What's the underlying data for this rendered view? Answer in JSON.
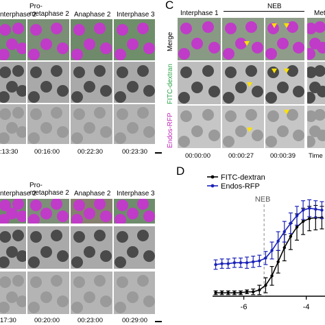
{
  "panel_C": {
    "letter": "C",
    "header_left": "Interphase 1",
    "header_neb": "NEB",
    "header_right": "Met",
    "row_labels": [
      "Merge",
      "FITC-dextran",
      "Endos-RFP"
    ],
    "timestamps": [
      "00:00:00",
      "00:00:27",
      "00:00:39"
    ],
    "time_cut": "Time"
  },
  "panel_B_top": {
    "headers": [
      "nterphase 2",
      "Pro-\nmetaphase 2",
      "Anaphase 2",
      "Interphase 3"
    ],
    "timestamps": [
      ":13:30",
      "00:16:00",
      "00:22:30",
      "00:23:30"
    ]
  },
  "panel_B_bottom": {
    "headers": [
      "nterphase 2",
      "Pro-\nmetaphase 2",
      "Anaphase 2",
      "Interphase 3"
    ],
    "timestamps": [
      "17:30",
      "00:20:00",
      "00:23:00",
      "00:29:00"
    ]
  },
  "panel_D": {
    "letter": "D",
    "neb_label": "NEB"
  },
  "chart_data": {
    "type": "line",
    "legend": [
      "FITC-dextran",
      "Endos-RFP"
    ],
    "legend_placement": "top-left",
    "x_ticks": [
      "-6",
      "-4"
    ],
    "xlim": [
      -7,
      -3.4
    ],
    "series": [
      {
        "name": "FITC-dextran",
        "color": "#000000",
        "x": [
          -6.9,
          -6.7,
          -6.5,
          -6.3,
          -6.1,
          -5.9,
          -5.7,
          -5.5,
          -5.3,
          -5.1,
          -4.9,
          -4.7,
          -4.5,
          -4.3,
          -4.1,
          -3.9,
          -3.7,
          -3.5
        ],
        "y": [
          0.0,
          0.0,
          0.0,
          0.0,
          0.0,
          0.01,
          0.01,
          0.03,
          0.08,
          0.18,
          0.33,
          0.48,
          0.6,
          0.7,
          0.76,
          0.79,
          0.8,
          0.8
        ],
        "err": [
          0.02,
          0.02,
          0.02,
          0.02,
          0.02,
          0.02,
          0.03,
          0.05,
          0.08,
          0.1,
          0.12,
          0.14,
          0.14,
          0.14,
          0.14,
          0.13,
          0.13,
          0.12
        ]
      },
      {
        "name": "Endos-RFP",
        "color": "#1a22b8",
        "x": [
          -6.9,
          -6.7,
          -6.5,
          -6.3,
          -6.1,
          -5.9,
          -5.7,
          -5.5,
          -5.3,
          -5.1,
          -4.9,
          -4.7,
          -4.5,
          -4.3,
          -4.1,
          -3.9,
          -3.7,
          -3.5
        ],
        "y": [
          0.3,
          0.31,
          0.31,
          0.32,
          0.32,
          0.32,
          0.33,
          0.34,
          0.37,
          0.45,
          0.55,
          0.65,
          0.74,
          0.82,
          0.88,
          0.9,
          0.89,
          0.88
        ],
        "err": [
          0.05,
          0.05,
          0.05,
          0.05,
          0.05,
          0.06,
          0.06,
          0.06,
          0.07,
          0.09,
          0.1,
          0.11,
          0.11,
          0.1,
          0.1,
          0.09,
          0.09,
          0.09
        ]
      }
    ],
    "neb_x": -5.35
  },
  "colors": {
    "magenta": "#c03bc8",
    "green": "#58b25a",
    "blue": "#1a22b8",
    "yellow": "#ffe100"
  }
}
